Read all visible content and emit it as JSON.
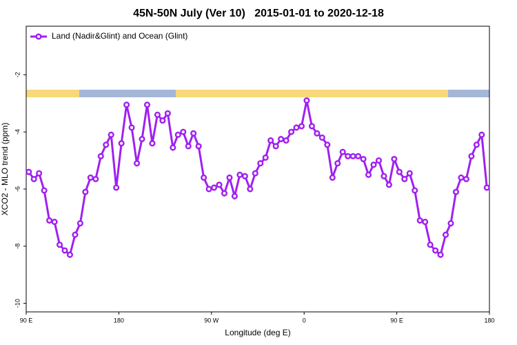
{
  "chart_data": {
    "type": "line",
    "title": "45N-50N July (Ver 10)   2015-01-01 to 2020-12-18",
    "x_label": "Longitude (deg E)",
    "y_label": "XCO2 - MLO trend (ppm)",
    "xlim": [
      90,
      540
    ],
    "ylim": [
      -10.3,
      -0.3
    ],
    "xticks": [
      {
        "value": 90,
        "label": "90 E"
      },
      {
        "value": 180,
        "label": "180"
      },
      {
        "value": 270,
        "label": "90 W"
      },
      {
        "value": 360,
        "label": "0"
      },
      {
        "value": 450,
        "label": "90 E"
      },
      {
        "value": 540,
        "label": "180"
      }
    ],
    "yticks": [
      -2,
      -4,
      -6,
      -8,
      -10
    ],
    "legend_position": "top-left",
    "x": [
      92.5,
      97.5,
      102.5,
      107.5,
      112.5,
      117.5,
      122.5,
      127.5,
      132.5,
      137.5,
      142.5,
      147.5,
      152.5,
      157.5,
      162.5,
      167.5,
      172.5,
      177.5,
      182.5,
      187.5,
      192.5,
      197.5,
      202.5,
      207.5,
      212.5,
      217.5,
      222.5,
      227.5,
      232.5,
      237.5,
      242.5,
      247.5,
      252.5,
      257.5,
      262.5,
      267.5,
      272.5,
      277.5,
      282.5,
      287.5,
      292.5,
      297.5,
      302.5,
      307.5,
      312.5,
      317.5,
      322.5,
      327.5,
      332.5,
      337.5,
      342.5,
      347.5,
      352.5,
      357.5,
      362.5,
      367.5,
      372.5,
      377.5,
      382.5,
      387.5,
      392.5,
      397.5,
      402.5,
      407.5,
      412.5,
      417.5,
      422.5,
      427.5,
      432.5,
      437.5,
      442.5,
      447.5,
      452.5,
      457.5,
      462.5,
      467.5,
      472.5,
      477.5,
      482.5,
      487.5,
      492.5,
      497.5,
      502.5,
      507.5,
      512.5,
      517.5,
      522.5,
      527.5,
      532.5,
      537.5
    ],
    "series": [
      {
        "name": "Land (Nadir&Glint) and Ocean (Glint)",
        "color": "#a020f0",
        "values": [
          -5.4,
          -5.65,
          -5.45,
          -6.05,
          -7.1,
          -7.15,
          -7.95,
          -8.15,
          -8.3,
          -7.6,
          -7.2,
          -6.1,
          -5.6,
          -5.65,
          -4.85,
          -4.45,
          -4.1,
          -5.95,
          -4.4,
          -3.05,
          -3.85,
          -5.1,
          -4.25,
          -3.05,
          -4.4,
          -3.4,
          -3.6,
          -3.35,
          -4.55,
          -4.1,
          -4.0,
          -4.5,
          -4.05,
          -4.5,
          -5.6,
          -6.0,
          -5.95,
          -5.85,
          -6.15,
          -5.6,
          -6.25,
          -5.5,
          -5.55,
          -6.0,
          -5.45,
          -5.1,
          -4.9,
          -4.3,
          -4.5,
          -4.25,
          -4.3,
          -4.0,
          -3.85,
          -3.8,
          -2.9,
          -3.8,
          -4.05,
          -4.2,
          -4.45,
          -5.6,
          -5.1,
          -4.7,
          -4.85,
          -4.85,
          -4.85,
          -4.95,
          -5.5,
          -5.15,
          -5.0,
          -5.55,
          -5.85,
          -4.95,
          -5.4,
          -5.65,
          -5.45,
          -6.05,
          -7.1,
          -7.15,
          -7.95,
          -8.15,
          -8.3,
          -7.6,
          -7.2,
          -6.1,
          -5.6,
          -5.65,
          -4.85,
          -4.45,
          -4.1,
          -5.95
        ]
      }
    ]
  }
}
